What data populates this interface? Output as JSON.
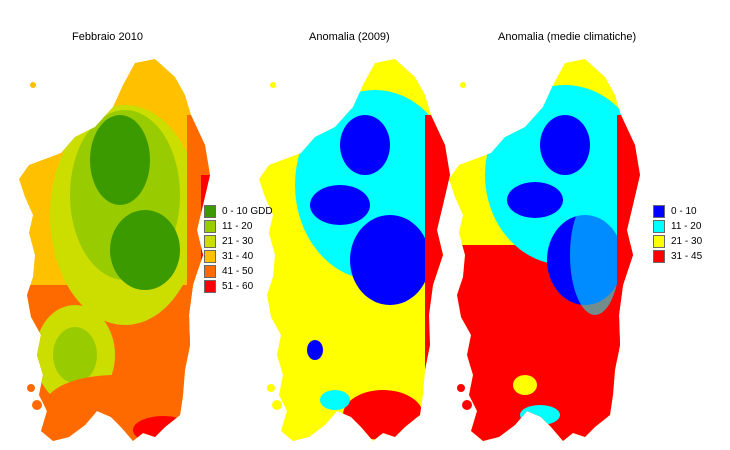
{
  "panels": [
    {
      "title": "Febbraio 2010"
    },
    {
      "title": "Anomalia (2009)"
    },
    {
      "title": "Anomalia (medie climatiche)"
    }
  ],
  "legend_gdd": [
    {
      "label": "0 - 10 GDD",
      "color": "#3a9a00"
    },
    {
      "label": "11 - 20",
      "color": "#99cc00"
    },
    {
      "label": "21 - 30",
      "color": "#ccdd00"
    },
    {
      "label": "31 - 40",
      "color": "#ffc000"
    },
    {
      "label": "41 - 50",
      "color": "#ff6a00"
    },
    {
      "label": "51 - 60",
      "color": "#ff0000"
    }
  ],
  "legend_anomaly": [
    {
      "label": "0 - 10",
      "color": "#0000ff"
    },
    {
      "label": "11 - 20",
      "color": "#00ffff"
    },
    {
      "label": "21 - 30",
      "color": "#ffff00"
    },
    {
      "label": "31 - 45",
      "color": "#ff0000"
    }
  ]
}
